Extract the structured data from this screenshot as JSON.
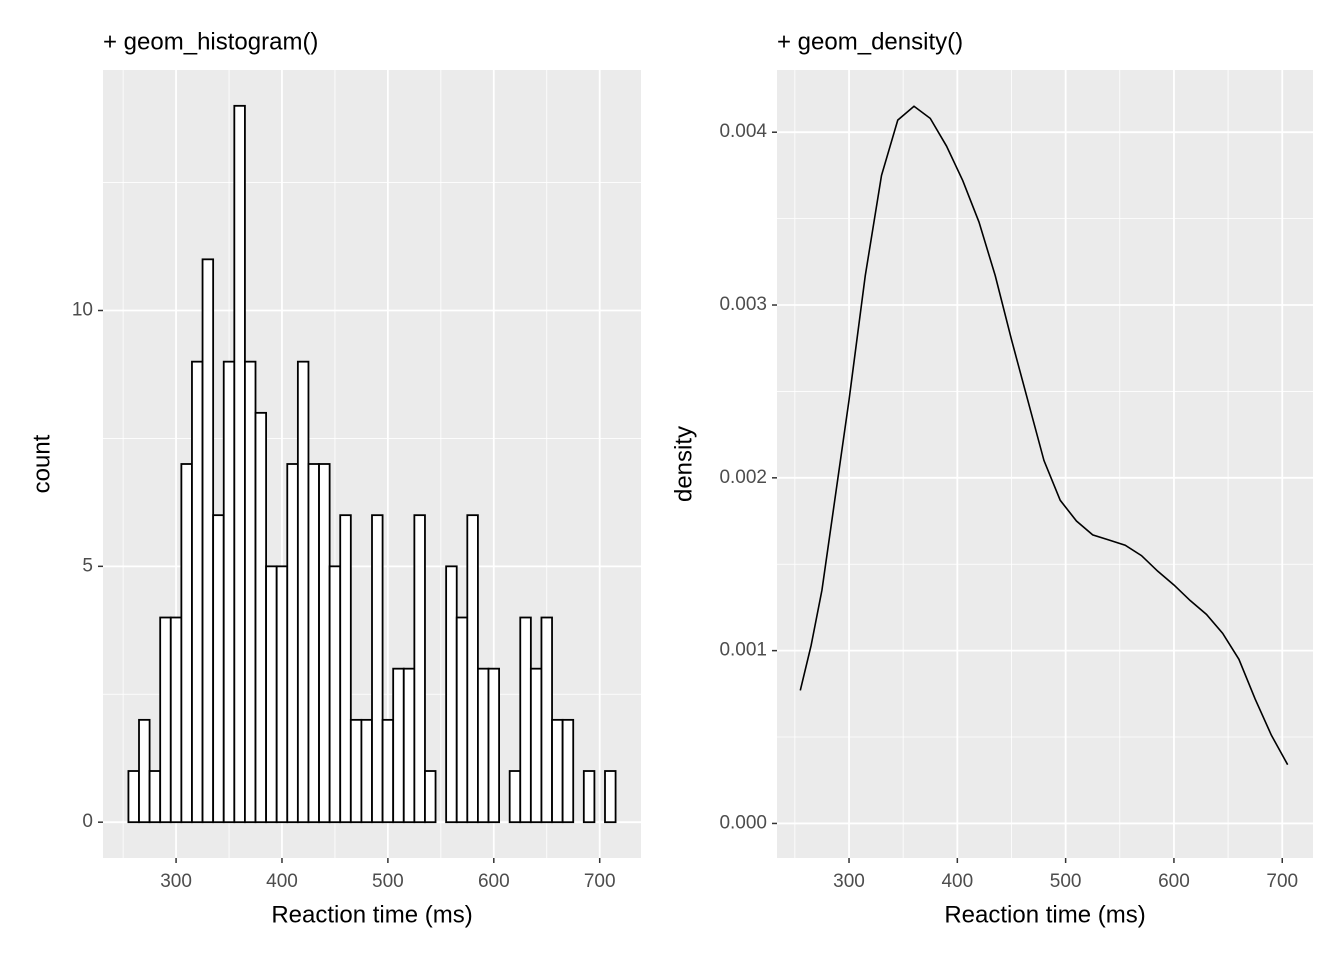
{
  "chart_data": [
    {
      "type": "histogram",
      "title": "+ geom_histogram()",
      "x_label": "Reaction time (ms)",
      "y_label": "count",
      "bins": [
        255,
        265,
        275,
        285,
        295,
        305,
        315,
        325,
        335,
        345,
        355,
        365,
        375,
        385,
        395,
        405,
        415,
        425,
        435,
        445,
        455,
        465,
        475,
        485,
        495,
        505,
        515,
        525,
        535,
        545,
        555,
        565,
        575,
        585,
        595,
        605,
        615,
        625,
        635,
        645,
        655,
        665,
        675,
        685,
        695,
        705,
        715
      ],
      "values": [
        1,
        2,
        1,
        4,
        4,
        7,
        9,
        11,
        6,
        9,
        14,
        9,
        8,
        5,
        5,
        7,
        9,
        7,
        7,
        5,
        6,
        2,
        2,
        6,
        2,
        3,
        3,
        6,
        1,
        0,
        5,
        4,
        6,
        3,
        3,
        0,
        1,
        4,
        3,
        4,
        2,
        2,
        0,
        1,
        0,
        1
      ],
      "color": "#ffffff",
      "edge_color": "#000000",
      "xlim": [
        231,
        739
      ],
      "xticks": [
        300,
        400,
        500,
        600,
        700
      ],
      "ylim": [
        -0.7,
        14.7
      ],
      "yticks": [
        0,
        5,
        10
      ],
      "grid": true
    },
    {
      "type": "line",
      "title": "+ geom_density()",
      "x_label": "Reaction time (ms)",
      "y_label": "density",
      "x": [
        255,
        265,
        275,
        285,
        300,
        315,
        330,
        345,
        360,
        375,
        390,
        405,
        420,
        435,
        450,
        465,
        480,
        495,
        510,
        525,
        540,
        555,
        570,
        585,
        600,
        615,
        630,
        645,
        660,
        675,
        690,
        705
      ],
      "values": [
        0.00077,
        0.00103,
        0.00135,
        0.00179,
        0.00245,
        0.00317,
        0.00375,
        0.00407,
        0.00415,
        0.00408,
        0.00392,
        0.00372,
        0.00348,
        0.00317,
        0.0028,
        0.00245,
        0.0021,
        0.00187,
        0.00175,
        0.00167,
        0.00164,
        0.00161,
        0.00155,
        0.00146,
        0.00138,
        0.00129,
        0.00121,
        0.0011,
        0.00095,
        0.00072,
        0.00051,
        0.00034
      ],
      "color": "#000000",
      "xlim": [
        233.5,
        728.4
      ],
      "xticks": [
        300,
        400,
        500,
        600,
        700
      ],
      "ylim": [
        -0.0002,
        0.00436
      ],
      "yticks": [
        {
          "value": 0,
          "label": "0.000"
        },
        {
          "value": 0.001,
          "label": "0.001"
        },
        {
          "value": 0.002,
          "label": "0.002"
        },
        {
          "value": 0.003,
          "label": "0.003"
        },
        {
          "value": 0.004,
          "label": "0.004"
        }
      ],
      "grid": true
    }
  ]
}
